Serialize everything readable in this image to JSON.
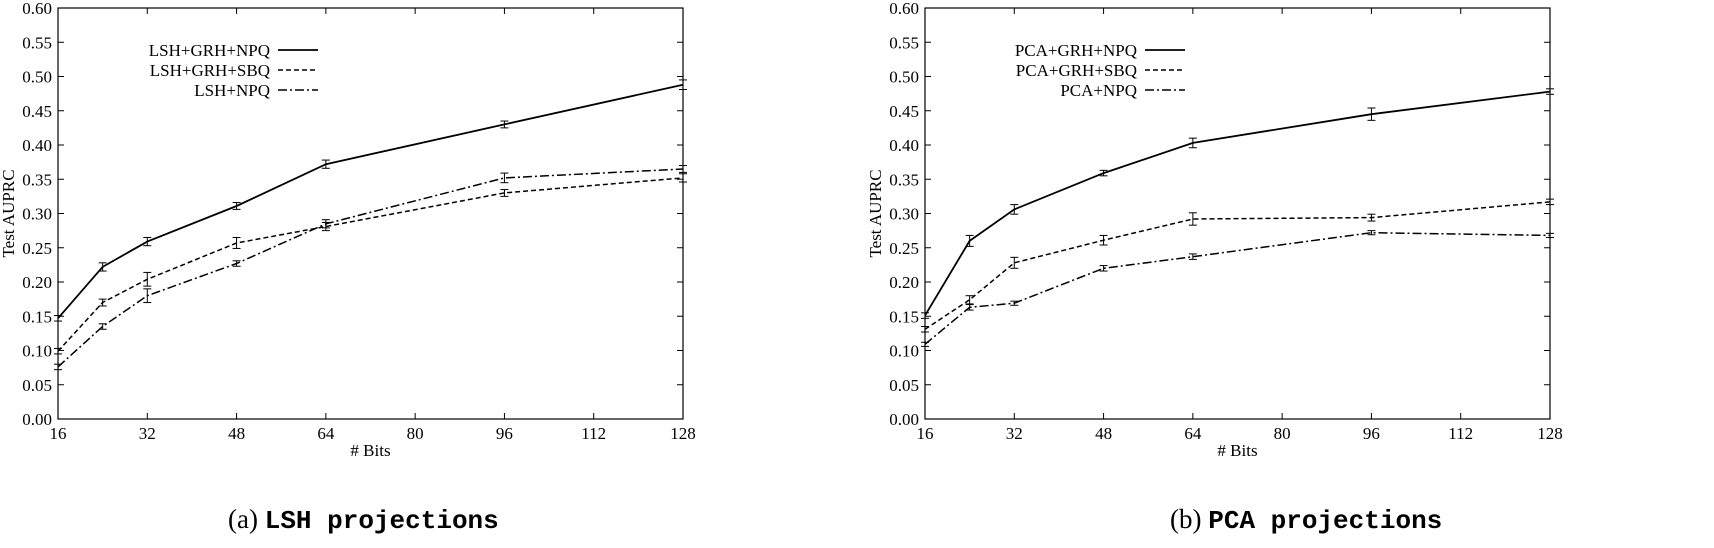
{
  "chart_data": [
    {
      "type": "line",
      "caption_prefix": "(a)",
      "caption_title": "LSH projections",
      "xlabel": "# Bits",
      "ylabel": "Test AUPRC",
      "xlim": [
        16,
        128
      ],
      "ylim": [
        0.0,
        0.6
      ],
      "xticks": [
        "16",
        "32",
        "48",
        "64",
        "80",
        "96",
        "112",
        "128"
      ],
      "yticks": [
        "0.00",
        "0.05",
        "0.10",
        "0.15",
        "0.20",
        "0.25",
        "0.30",
        "0.35",
        "0.40",
        "0.45",
        "0.50",
        "0.55",
        "0.60"
      ],
      "legend_position": "top-left",
      "x": [
        16,
        24,
        32,
        48,
        64,
        96,
        128
      ],
      "series": [
        {
          "name": "LSH+GRH+NPQ",
          "style": "solid",
          "values": [
            0.147,
            0.222,
            0.259,
            0.311,
            0.372,
            0.43,
            0.488
          ],
          "errors": [
            0.004,
            0.006,
            0.006,
            0.005,
            0.006,
            0.005,
            0.007
          ]
        },
        {
          "name": "LSH+GRH+SBQ",
          "style": "dashed",
          "values": [
            0.099,
            0.17,
            0.204,
            0.257,
            0.281,
            0.33,
            0.352
          ],
          "errors": [
            0.004,
            0.005,
            0.01,
            0.008,
            0.006,
            0.005,
            0.006
          ]
        },
        {
          "name": "LSH+NPQ",
          "style": "dashdot",
          "values": [
            0.076,
            0.135,
            0.18,
            0.227,
            0.285,
            0.352,
            0.365
          ],
          "errors": [
            0.004,
            0.004,
            0.01,
            0.004,
            0.006,
            0.007,
            0.005
          ]
        }
      ]
    },
    {
      "type": "line",
      "caption_prefix": "(b)",
      "caption_title": "PCA projections",
      "xlabel": "# Bits",
      "ylabel": "Test AUPRC",
      "xlim": [
        16,
        128
      ],
      "ylim": [
        0.0,
        0.6
      ],
      "xticks": [
        "16",
        "32",
        "48",
        "64",
        "80",
        "96",
        "112",
        "128"
      ],
      "yticks": [
        "0.00",
        "0.05",
        "0.10",
        "0.15",
        "0.20",
        "0.25",
        "0.30",
        "0.35",
        "0.40",
        "0.45",
        "0.50",
        "0.55",
        "0.60"
      ],
      "legend_position": "top-left",
      "x": [
        16,
        24,
        32,
        48,
        64,
        96,
        128
      ],
      "series": [
        {
          "name": "PCA+GRH+NPQ",
          "style": "solid",
          "values": [
            0.151,
            0.26,
            0.306,
            0.359,
            0.403,
            0.445,
            0.478
          ],
          "errors": [
            0.004,
            0.008,
            0.007,
            0.004,
            0.007,
            0.009,
            0.004
          ]
        },
        {
          "name": "PCA+GRH+SBQ",
          "style": "dashed",
          "values": [
            0.131,
            0.174,
            0.228,
            0.261,
            0.292,
            0.294,
            0.317
          ],
          "errors": [
            0.004,
            0.006,
            0.008,
            0.007,
            0.009,
            0.005,
            0.004
          ]
        },
        {
          "name": "PCA+NPQ",
          "style": "dashdot",
          "values": [
            0.109,
            0.163,
            0.169,
            0.22,
            0.237,
            0.272,
            0.268
          ],
          "errors": [
            0.003,
            0.004,
            0.003,
            0.004,
            0.004,
            0.003,
            0.003
          ]
        }
      ]
    }
  ]
}
